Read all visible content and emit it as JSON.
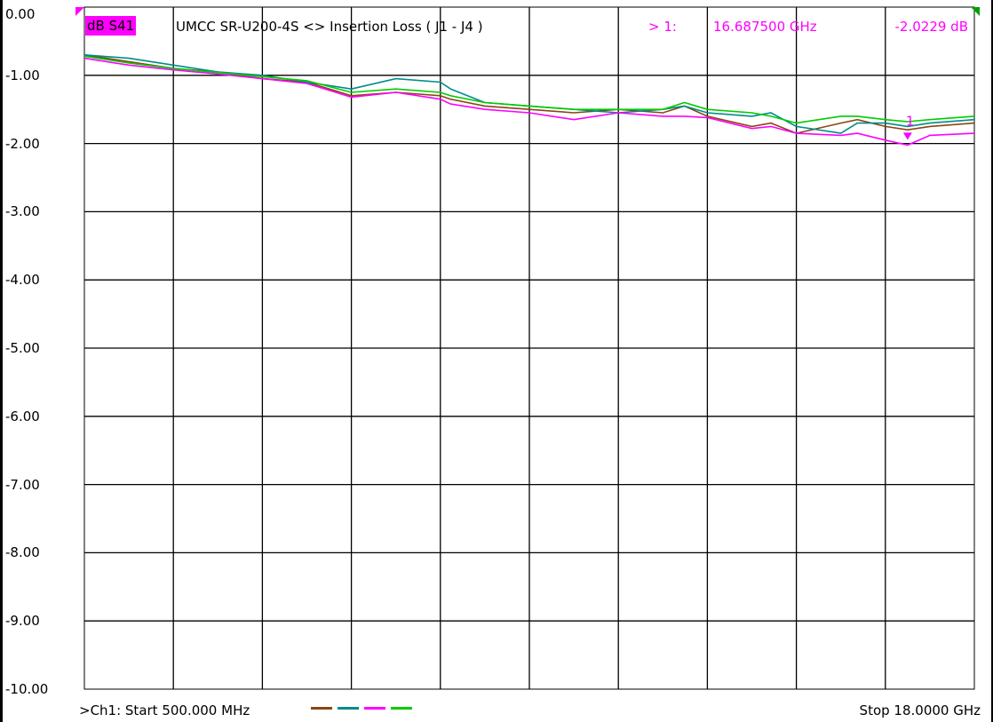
{
  "window": {
    "trace_badge": "dB S41",
    "title": "UMCC  SR-U200-4S <> Insertion Loss ( J1 - J4 )",
    "marker_num": "> 1:",
    "marker_freq": "16.687500 GHz",
    "marker_value": "-2.0229 dB"
  },
  "footer": {
    "start": ">Ch1: Start  500.000 MHz",
    "stop": "Stop  18.0000 GHz"
  },
  "colors": {
    "background": "#ffffff",
    "grid": "#000000",
    "marker": "#ff00ff"
  },
  "chart_data": {
    "type": "line",
    "title": "UMCC  SR-U200-4S <> Insertion Loss ( J1 - J4 )",
    "xlabel": "",
    "ylabel": "",
    "xlim": [
      0.5,
      18.0
    ],
    "ylim": [
      -10.0,
      0.0
    ],
    "x_unit": "GHz",
    "y_unit": "dB",
    "grid": true,
    "y_ticks": [
      "0.00",
      "-1.00",
      "-2.00",
      "-3.00",
      "-4.00",
      "-5.00",
      "-6.00",
      "-7.00",
      "-8.00",
      "-9.00",
      "-10.00"
    ],
    "x": [
      0.5,
      1.375,
      2.25,
      3.125,
      4.0,
      4.875,
      5.75,
      6.625,
      7.5,
      7.7,
      8.375,
      9.25,
      10.125,
      11.0,
      11.875,
      12.3,
      12.75,
      13.625,
      14.0,
      14.5,
      15.375,
      15.7,
      16.25,
      16.6875,
      17.125,
      18.0
    ],
    "series": [
      {
        "color": "#8b4513",
        "values": [
          -0.7,
          -0.8,
          -0.9,
          -0.95,
          -1.05,
          -1.1,
          -1.3,
          -1.25,
          -1.3,
          -1.35,
          -1.45,
          -1.5,
          -1.55,
          -1.5,
          -1.55,
          -1.45,
          -1.6,
          -1.75,
          -1.7,
          -1.85,
          -1.7,
          -1.65,
          -1.75,
          -1.8,
          -1.75,
          -1.7
        ]
      },
      {
        "color": "#008b8b",
        "values": [
          -0.7,
          -0.75,
          -0.85,
          -0.95,
          -1.0,
          -1.1,
          -1.2,
          -1.05,
          -1.1,
          -1.2,
          -1.4,
          -1.45,
          -1.5,
          -1.55,
          -1.5,
          -1.45,
          -1.55,
          -1.6,
          -1.55,
          -1.75,
          -1.85,
          -1.7,
          -1.7,
          -1.75,
          -1.7,
          -1.65
        ]
      },
      {
        "color": "#ff00ff",
        "values": [
          -0.75,
          -0.85,
          -0.92,
          -0.98,
          -1.05,
          -1.12,
          -1.32,
          -1.25,
          -1.35,
          -1.42,
          -1.5,
          -1.55,
          -1.65,
          -1.55,
          -1.6,
          -1.6,
          -1.62,
          -1.78,
          -1.75,
          -1.85,
          -1.88,
          -1.85,
          -1.95,
          -2.0229,
          -1.88,
          -1.85
        ]
      },
      {
        "color": "#00cc00",
        "values": [
          -0.72,
          -0.82,
          -0.9,
          -0.96,
          -1.02,
          -1.08,
          -1.25,
          -1.2,
          -1.25,
          -1.3,
          -1.4,
          -1.45,
          -1.5,
          -1.5,
          -1.5,
          -1.4,
          -1.5,
          -1.55,
          -1.6,
          -1.7,
          -1.6,
          -1.6,
          -1.65,
          -1.68,
          -1.65,
          -1.6
        ]
      }
    ],
    "marker": {
      "label": "1",
      "x": 16.6875,
      "y": -2.0229
    }
  }
}
